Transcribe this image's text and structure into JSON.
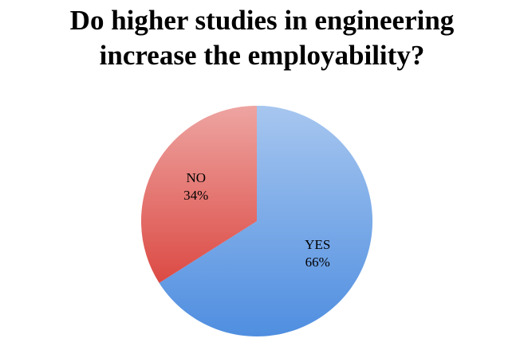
{
  "chart_data": {
    "type": "pie",
    "title": "Do higher studies in engineering increase the employability?",
    "categories": [
      "YES",
      "NO"
    ],
    "values": [
      66,
      34
    ],
    "value_labels": [
      "66%",
      "34%"
    ],
    "colors": [
      "#4f8ee0",
      "#dc4a44"
    ]
  }
}
